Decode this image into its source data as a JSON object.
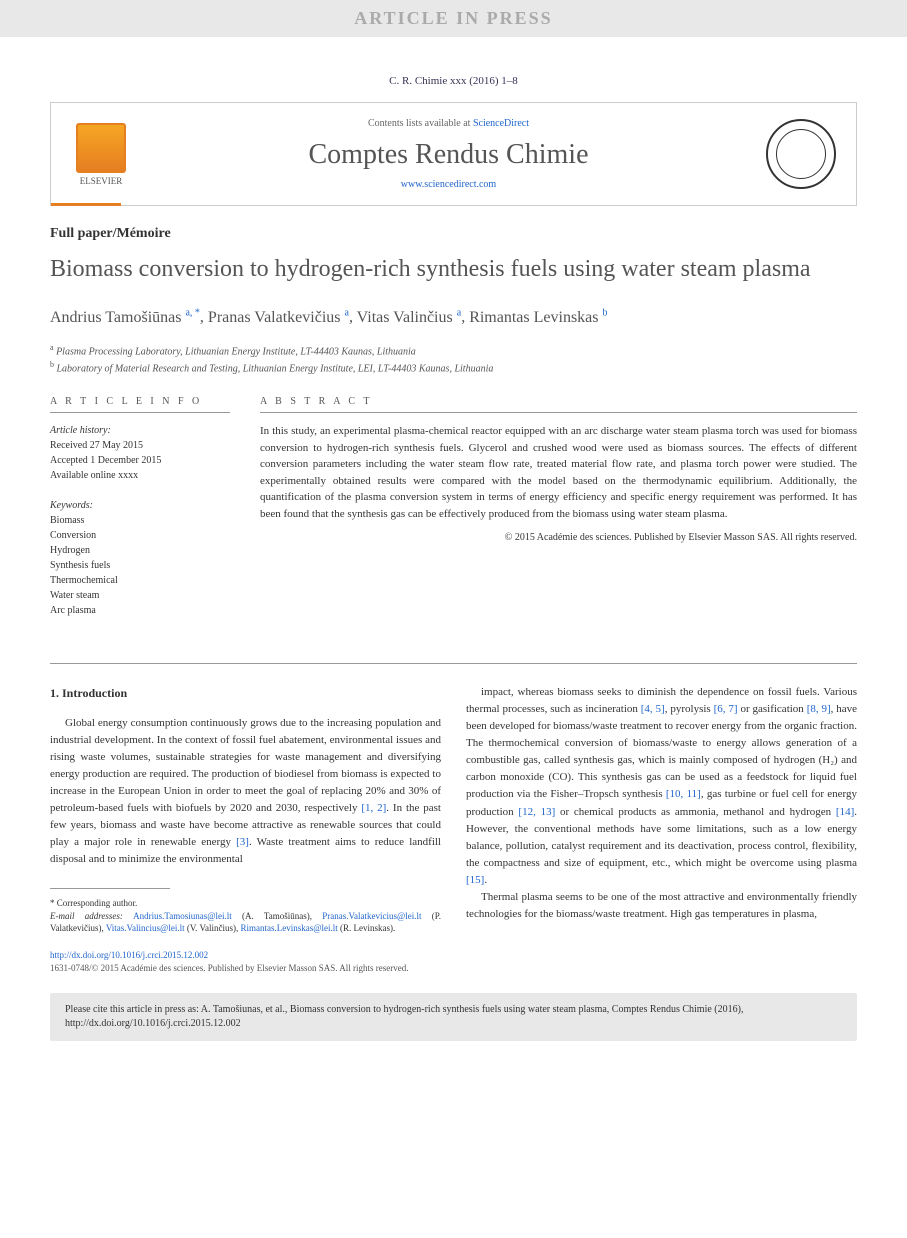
{
  "pressBanner": "ARTICLE IN PRESS",
  "citationLine": "C. R. Chimie xxx (2016) 1–8",
  "header": {
    "contentsPrefix": "Contents lists available at ",
    "contentsLink": "ScienceDirect",
    "journalName": "Comptes Rendus Chimie",
    "journalUrl": "www.sciencedirect.com",
    "elsevierLabel": "ELSEVIER"
  },
  "articleType": "Full paper/Mémoire",
  "title": "Biomass conversion to hydrogen-rich synthesis fuels using water steam plasma",
  "authors": [
    {
      "name": "Andrius Tamošiūnas",
      "affil": "a, *"
    },
    {
      "name": "Pranas Valatkevičius",
      "affil": "a"
    },
    {
      "name": "Vitas Valinčius",
      "affil": "a"
    },
    {
      "name": "Rimantas Levinskas",
      "affil": "b"
    }
  ],
  "affiliations": [
    {
      "sup": "a",
      "text": "Plasma Processing Laboratory, Lithuanian Energy Institute, LT-44403 Kaunas, Lithuania"
    },
    {
      "sup": "b",
      "text": "Laboratory of Material Research and Testing, Lithuanian Energy Institute, LEI, LT-44403 Kaunas, Lithuania"
    }
  ],
  "articleInfo": {
    "heading": "A R T I C L E   I N F O",
    "historyLabel": "Article history:",
    "history": [
      "Received 27 May 2015",
      "Accepted 1 December 2015",
      "Available online xxxx"
    ],
    "keywordsLabel": "Keywords:",
    "keywords": [
      "Biomass",
      "Conversion",
      "Hydrogen",
      "Synthesis fuels",
      "Thermochemical",
      "Water steam",
      "Arc plasma"
    ]
  },
  "abstract": {
    "heading": "A B S T R A C T",
    "text": "In this study, an experimental plasma-chemical reactor equipped with an arc discharge water steam plasma torch was used for biomass conversion to hydrogen-rich synthesis fuels. Glycerol and crushed wood were used as biomass sources. The effects of different conversion parameters including the water steam flow rate, treated material flow rate, and plasma torch power were studied. The experimentally obtained results were compared with the model based on the thermodynamic equilibrium. Additionally, the quantification of the plasma conversion system in terms of energy efficiency and specific energy requirement was performed. It has been found that the synthesis gas can be effectively produced from the biomass using water steam plasma.",
    "copyright": "© 2015 Académie des sciences. Published by Elsevier Masson SAS. All rights reserved."
  },
  "section1": {
    "heading": "1. Introduction",
    "col1": "Global energy consumption continuously grows due to the increasing population and industrial development. In the context of fossil fuel abatement, environmental issues and rising waste volumes, sustainable strategies for waste management and diversifying energy production are required. The production of biodiesel from biomass is expected to increase in the European Union in order to meet the goal of replacing 20% and 30% of petroleum-based fuels with biofuels by 2020 and 2030, respectively [1, 2]. In the past few years, biomass and waste have become attractive as renewable sources that could play a major role in renewable energy [3]. Waste treatment aims to reduce landfill disposal and to minimize the environmental",
    "refs1": [
      "[1, 2]",
      "[3]"
    ],
    "col2p1": "impact, whereas biomass seeks to diminish the dependence on fossil fuels. Various thermal processes, such as incineration [4, 5], pyrolysis [6, 7] or gasification [8, 9], have been developed for biomass/waste treatment to recover energy from the organic fraction. The thermochemical conversion of biomass/waste to energy allows generation of a combustible gas, called synthesis gas, which is mainly composed of hydrogen (H₂) and carbon monoxide (CO). This synthesis gas can be used as a feedstock for liquid fuel production via the Fisher–Tropsch synthesis [10, 11], gas turbine or fuel cell for energy production [12, 13] or chemical products as ammonia, methanol and hydrogen [14]. However, the conventional methods have some limitations, such as a low energy balance, pollution, catalyst requirement and its deactivation, process control, flexibility, the compactness and size of equipment, etc., which might be overcome using plasma [15].",
    "refs2": [
      "[4, 5]",
      "[6, 7]",
      "[8, 9]",
      "[10, 11]",
      "[12, 13]",
      "[14]",
      "[15]"
    ],
    "col2p2": "Thermal plasma seems to be one of the most attractive and environmentally friendly technologies for the biomass/waste treatment. High gas temperatures in plasma,"
  },
  "correspondence": {
    "label": "* Corresponding author.",
    "emailLabel": "E-mail addresses: ",
    "emails": [
      {
        "email": "Andrius.Tamosiunas@lei.lt",
        "name": "(A. Tamošiūnas)"
      },
      {
        "email": "Pranas.Valatkevicius@lei.lt",
        "name": "(P. Valatkevičius)"
      },
      {
        "email": "Vitas.Valincius@lei.lt",
        "name": "(V. Valinčius)"
      },
      {
        "email": "Rimantas.Levinskas@lei.lt",
        "name": "(R. Levinskas)"
      }
    ]
  },
  "doi": "http://dx.doi.org/10.1016/j.crci.2015.12.002",
  "bottomCopyright": "1631-0748/© 2015 Académie des sciences. Published by Elsevier Masson SAS. All rights reserved.",
  "citeBox": "Please cite this article in press as: A. Tamošiunas, et al., Biomass conversion to hydrogen-rich synthesis fuels using water steam plasma, Comptes Rendus Chimie (2016), http://dx.doi.org/10.1016/j.crci.2015.12.002",
  "colors": {
    "accent": "#e67e22",
    "link": "#2266cc",
    "grayBg": "#e8e8e8",
    "textGray": "#555"
  }
}
